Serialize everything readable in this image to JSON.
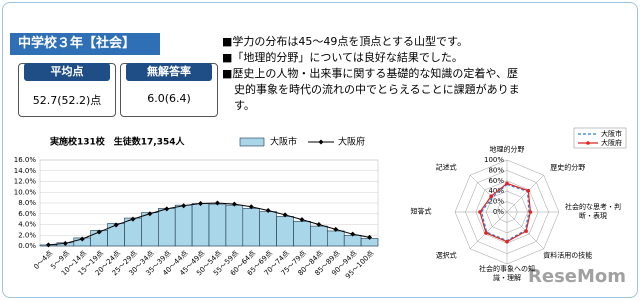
{
  "header": {
    "title": "中学校３年【社会】"
  },
  "stats": [
    {
      "label": "平均点",
      "value": "52.7(52.2)点"
    },
    {
      "label": "無解答率",
      "value": "6.0(6.4)"
    }
  ],
  "notes": [
    "■学力の分布は45～49点を頂点とする山型です。",
    "■「地理的分野」については良好な結果でした。",
    "■歴史上の人物・出来事に関する基礎的な知識の定着や、歴史的事象を時代の流れの中でとらえることに課題があります。"
  ],
  "watermark": "ReseMom",
  "chart_data": [
    {
      "type": "bar",
      "title": "実施校131校　生徒数17,354人",
      "categories": [
        "0～4点",
        "5～9点",
        "10～14点",
        "15～19点",
        "20～24点",
        "25～29点",
        "30～34点",
        "35～39点",
        "40～44点",
        "45～49点",
        "50～54点",
        "55～59点",
        "60～64点",
        "65～69点",
        "70～74点",
        "75～79点",
        "80～84点",
        "85～89点",
        "90～94点",
        "95～100点"
      ],
      "series": [
        {
          "name": "大阪市",
          "color": "#a9d6e8",
          "values": [
            0.2,
            0.6,
            1.5,
            2.9,
            4.2,
            5.2,
            6.2,
            7.0,
            7.6,
            7.9,
            7.8,
            7.6,
            7.0,
            6.4,
            5.5,
            4.6,
            3.7,
            2.8,
            2.0,
            1.4
          ]
        },
        {
          "name": "大阪府",
          "color": "#000000",
          "type": "line",
          "values": [
            0.2,
            0.5,
            1.3,
            2.6,
            3.9,
            5.0,
            6.0,
            6.9,
            7.5,
            7.9,
            8.0,
            7.8,
            7.3,
            6.6,
            5.8,
            4.9,
            4.0,
            3.1,
            2.2,
            1.6
          ]
        }
      ],
      "ylim": [
        0,
        16
      ],
      "yticks": [
        {
          "value": 0,
          "label": "0.0%"
        },
        {
          "value": 2,
          "label": "2.0%"
        },
        {
          "value": 4,
          "label": "4.0%"
        },
        {
          "value": 6,
          "label": "6.0%"
        },
        {
          "value": 8,
          "label": "8.0%"
        },
        {
          "value": 10,
          "label": "10.0%"
        },
        {
          "value": 12,
          "label": "12.0%"
        },
        {
          "value": 14,
          "label": "14.0%"
        },
        {
          "value": 16,
          "label": "16.0%"
        }
      ],
      "grid": true,
      "legend": "top"
    },
    {
      "type": "radar",
      "categories": [
        "地理的分野",
        "歴史的分野",
        "社会的な思考・判断・表現",
        "資料活用の技能",
        "社会的事象への知識・理解",
        "選択式",
        "短答式",
        "記述式"
      ],
      "series": [
        {
          "name": "大阪市",
          "color": "#2a7fd4",
          "values": [
            53,
            56,
            42,
            50,
            55,
            55,
            49,
            40
          ]
        },
        {
          "name": "大阪府",
          "color": "#e02424",
          "values": [
            55,
            58,
            45,
            52,
            57,
            57,
            52,
            43
          ]
        }
      ],
      "rlim": [
        0,
        100
      ],
      "rticks": [
        {
          "value": 0,
          "label": "0%"
        },
        {
          "value": 20,
          "label": "20%"
        },
        {
          "value": 40,
          "label": "40%"
        },
        {
          "value": 60,
          "label": "60%"
        },
        {
          "value": 80,
          "label": "80%"
        },
        {
          "value": 100,
          "label": "100%"
        }
      ],
      "legend": "upper right"
    }
  ]
}
